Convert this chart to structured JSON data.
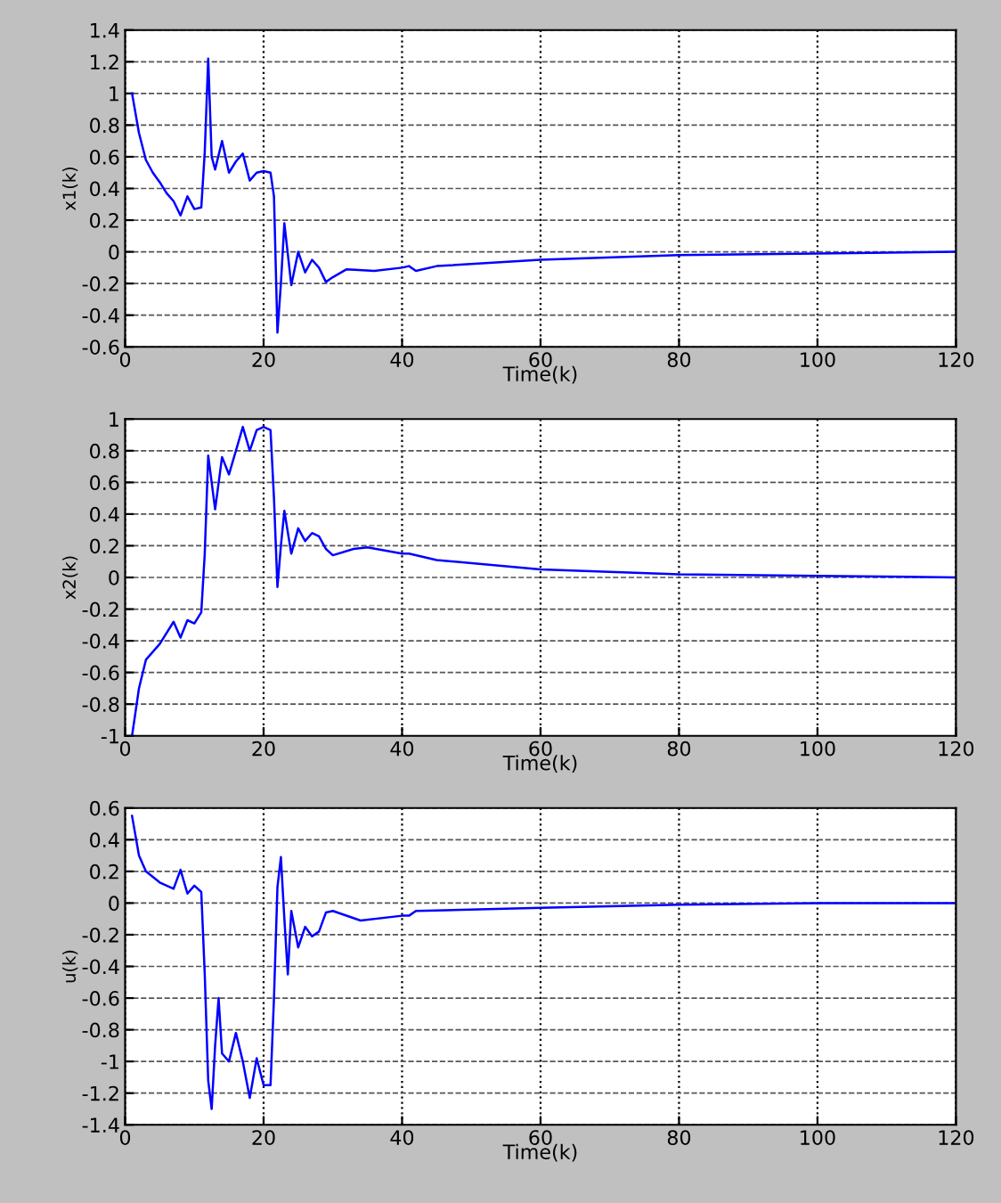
{
  "chart_data": [
    {
      "type": "line",
      "ylabel": "x1(k)",
      "xlabel": "Time(k)",
      "xlim": [
        0,
        120
      ],
      "xticks": [
        0,
        20,
        40,
        60,
        80,
        100,
        120
      ],
      "ylim": [
        -0.6,
        1.4
      ],
      "yticks": [
        -0.6,
        -0.4,
        -0.2,
        0,
        0.2,
        0.4,
        0.6,
        0.8,
        1,
        1.2,
        1.4
      ],
      "grid": true,
      "legend": false,
      "series": [
        {
          "color": "#0000ff",
          "x": [
            1,
            2,
            3,
            4,
            5,
            6,
            7,
            8,
            9,
            10,
            11,
            11.5,
            12,
            12.5,
            13,
            14,
            15,
            16,
            17,
            18,
            19,
            20,
            21,
            21.5,
            22,
            22.5,
            23,
            24,
            25,
            26,
            27,
            28,
            29,
            30,
            32,
            36,
            40,
            41,
            42,
            45,
            60,
            80,
            100,
            120
          ],
          "values": [
            1.0,
            0.75,
            0.58,
            0.5,
            0.44,
            0.37,
            0.32,
            0.23,
            0.35,
            0.27,
            0.28,
            0.63,
            1.22,
            0.6,
            0.52,
            0.7,
            0.5,
            0.57,
            0.62,
            0.45,
            0.5,
            0.51,
            0.5,
            0.35,
            -0.51,
            -0.2,
            0.18,
            -0.21,
            0.0,
            -0.13,
            -0.05,
            -0.1,
            -0.19,
            -0.16,
            -0.11,
            -0.12,
            -0.1,
            -0.09,
            -0.12,
            -0.09,
            -0.05,
            -0.02,
            -0.01,
            0.0
          ]
        }
      ]
    },
    {
      "type": "line",
      "ylabel": "x2(k)",
      "xlabel": "Time(k)",
      "xlim": [
        0,
        120
      ],
      "xticks": [
        0,
        20,
        40,
        60,
        80,
        100,
        120
      ],
      "ylim": [
        -1,
        1
      ],
      "yticks": [
        -1,
        -0.8,
        -0.6,
        -0.4,
        -0.2,
        0,
        0.2,
        0.4,
        0.6,
        0.8,
        1
      ],
      "grid": true,
      "legend": false,
      "series": [
        {
          "color": "#0000ff",
          "x": [
            1,
            2,
            3,
            5,
            7,
            8,
            9,
            10,
            11,
            11.5,
            12,
            12.5,
            13,
            14,
            15,
            16,
            17,
            18,
            19,
            20,
            21,
            21.5,
            22,
            22.5,
            23,
            24,
            25,
            26,
            27,
            28,
            29,
            30,
            33,
            35,
            40,
            41,
            45,
            60,
            80,
            100,
            120
          ],
          "values": [
            -1.0,
            -0.7,
            -0.52,
            -0.42,
            -0.28,
            -0.38,
            -0.27,
            -0.29,
            -0.22,
            0.15,
            0.77,
            0.6,
            0.43,
            0.76,
            0.65,
            0.8,
            0.95,
            0.8,
            0.93,
            0.95,
            0.93,
            0.5,
            -0.06,
            0.2,
            0.42,
            0.15,
            0.31,
            0.23,
            0.28,
            0.26,
            0.18,
            0.14,
            0.18,
            0.19,
            0.15,
            0.15,
            0.11,
            0.05,
            0.02,
            0.01,
            0.0
          ]
        }
      ]
    },
    {
      "type": "line",
      "ylabel": "u(k)",
      "xlabel": "Time(k)",
      "xlim": [
        0,
        120
      ],
      "xticks": [
        0,
        20,
        40,
        60,
        80,
        100,
        120
      ],
      "ylim": [
        -1.4,
        0.6
      ],
      "yticks": [
        -1.4,
        -1.2,
        -1,
        -0.8,
        -0.6,
        -0.4,
        -0.2,
        0,
        0.2,
        0.4,
        0.6
      ],
      "grid": true,
      "legend": false,
      "series": [
        {
          "color": "#0000ff",
          "x": [
            1,
            2,
            3,
            5,
            7,
            8,
            9,
            10,
            11,
            11.5,
            12,
            12.5,
            13,
            13.5,
            14,
            15,
            16,
            17,
            18,
            19,
            20,
            21,
            21.5,
            22,
            22.5,
            23,
            23.5,
            24,
            25,
            26,
            27,
            28,
            29,
            30,
            34,
            40,
            41,
            42,
            60,
            80,
            100,
            120
          ],
          "values": [
            0.55,
            0.3,
            0.2,
            0.13,
            0.09,
            0.21,
            0.06,
            0.11,
            0.07,
            -0.45,
            -1.12,
            -1.3,
            -0.9,
            -0.6,
            -0.95,
            -1.0,
            -0.82,
            -1.0,
            -1.23,
            -0.98,
            -1.15,
            -1.15,
            -0.6,
            0.1,
            0.29,
            -0.1,
            -0.45,
            -0.05,
            -0.28,
            -0.15,
            -0.21,
            -0.18,
            -0.06,
            -0.05,
            -0.11,
            -0.08,
            -0.08,
            -0.05,
            -0.03,
            -0.01,
            0.0,
            0.0
          ]
        }
      ]
    }
  ]
}
